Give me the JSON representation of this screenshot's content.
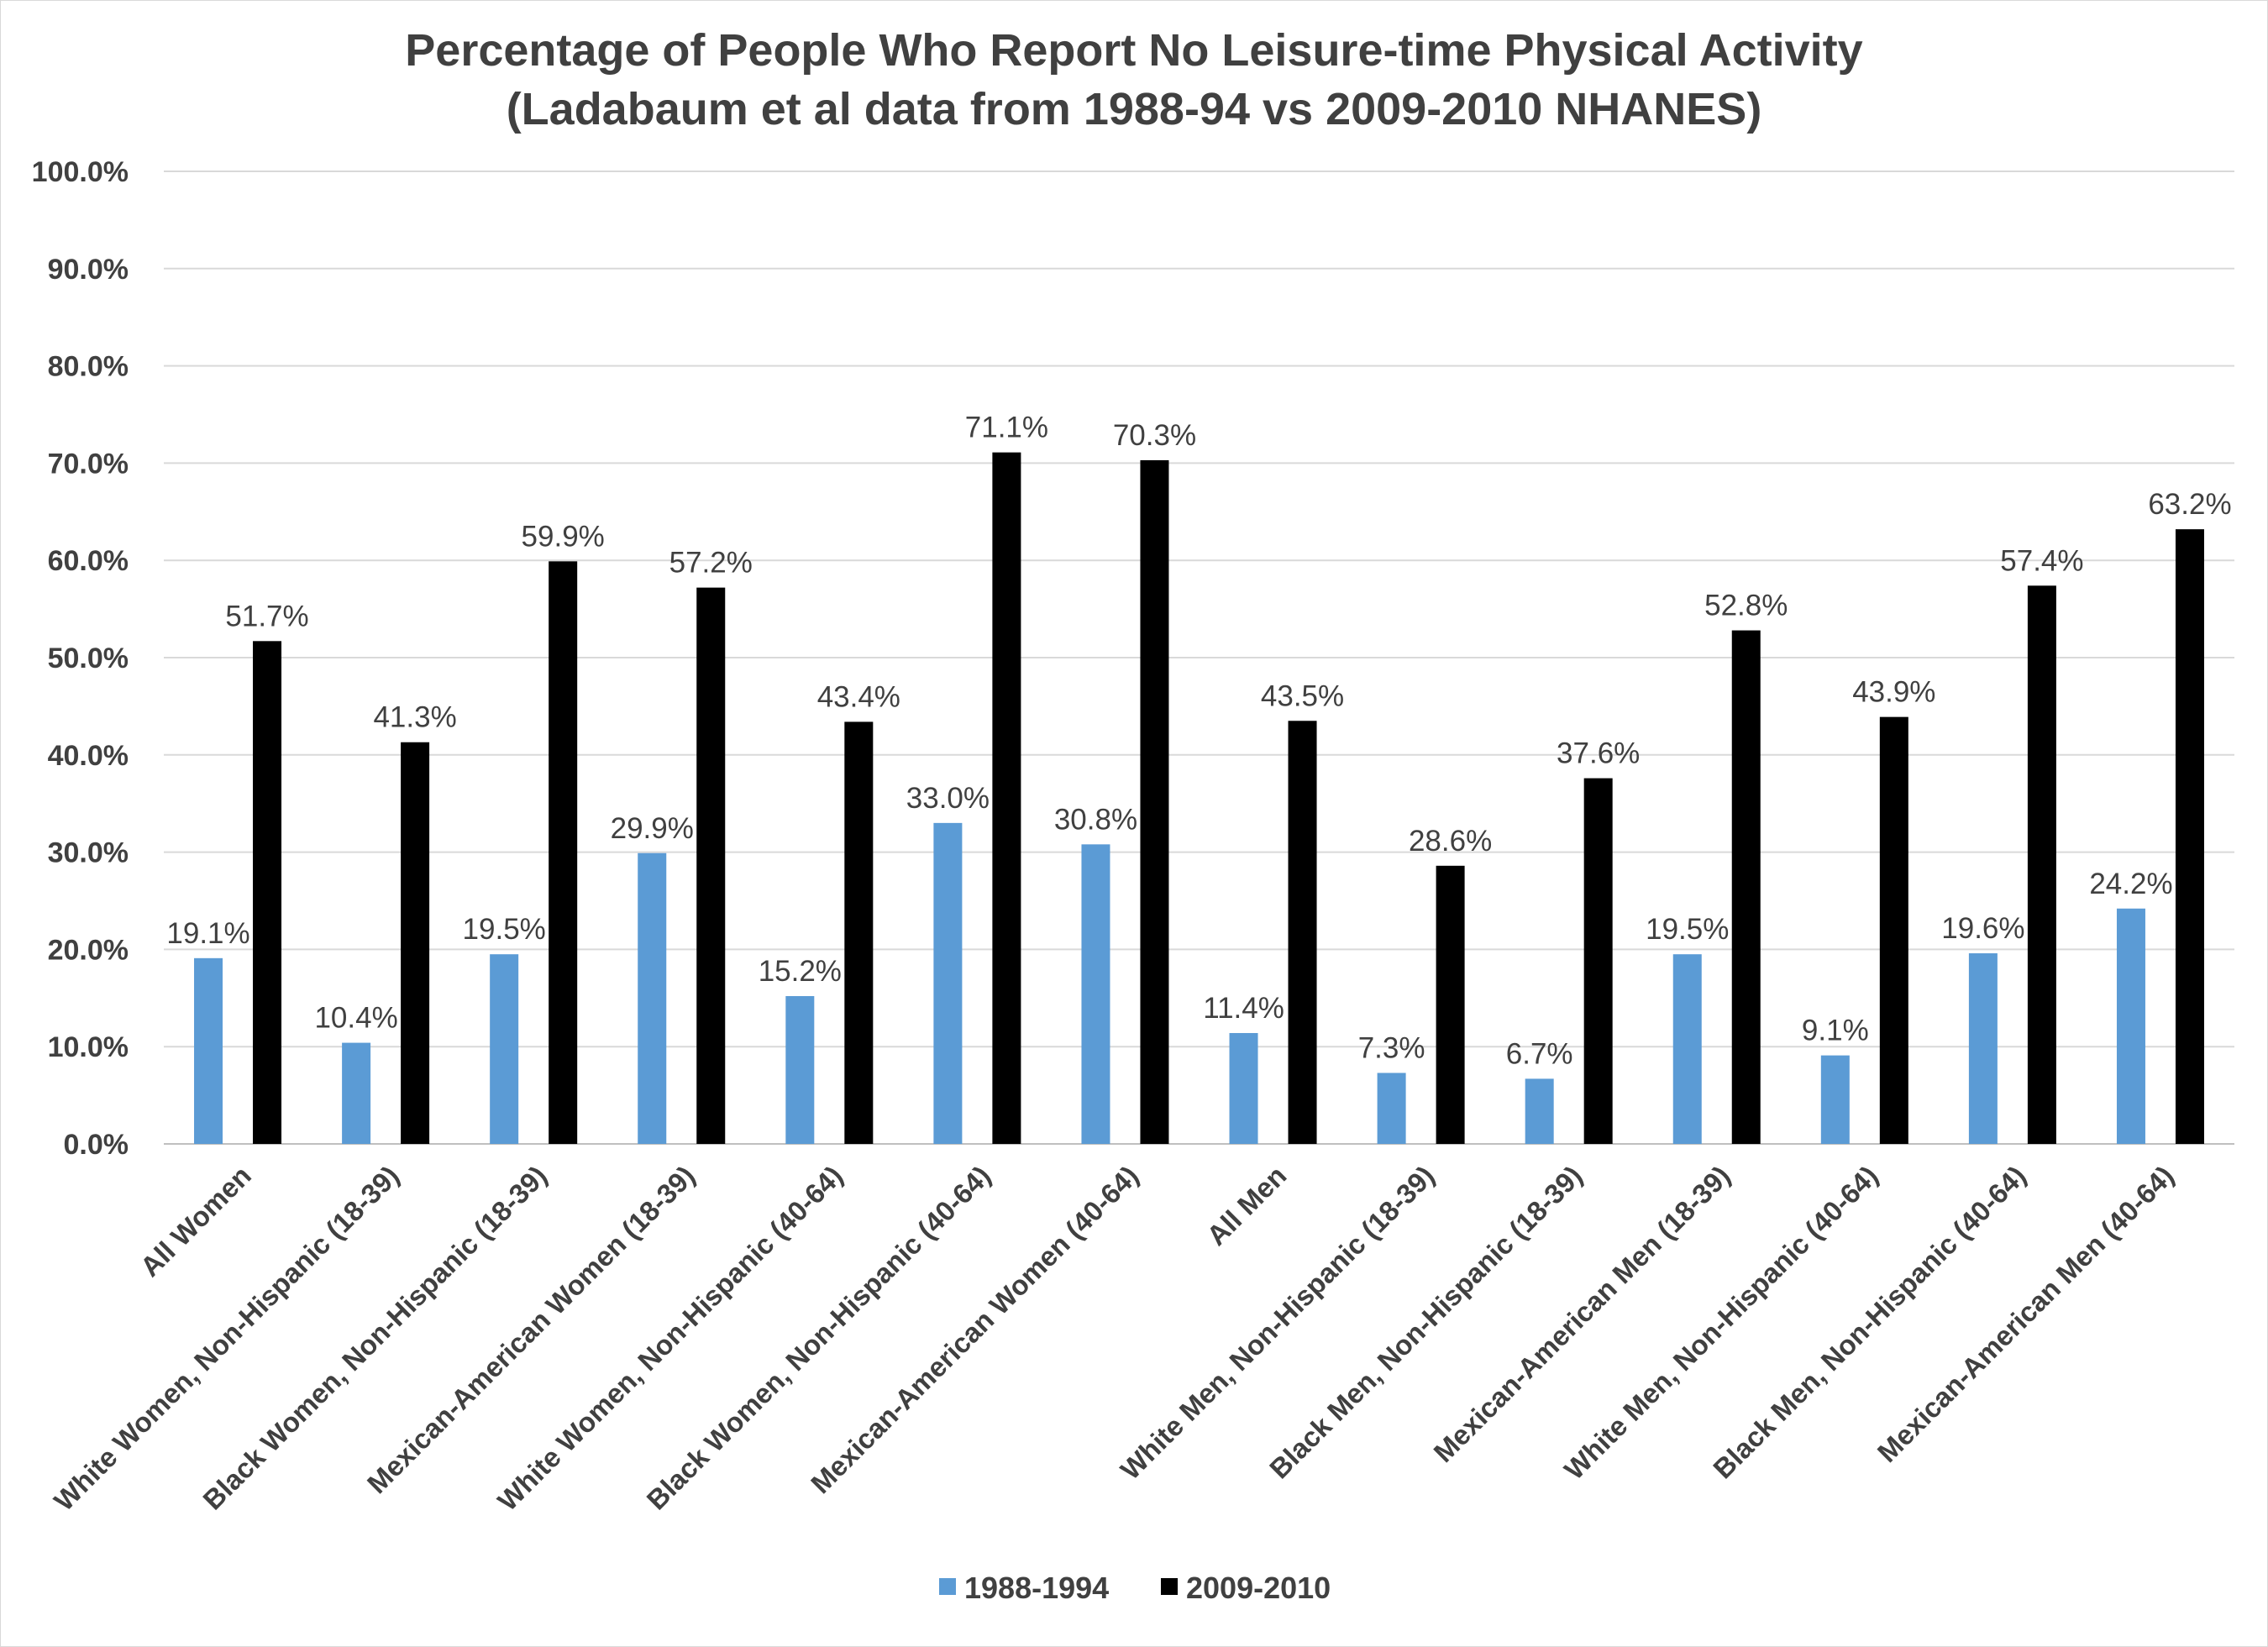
{
  "chart_data": {
    "type": "bar",
    "title": "Percentage of People Who Report No Leisure-time Physical Activity",
    "subtitle": "(Ladabaum et al data from 1988-94 vs 2009-2010 NHANES)",
    "xlabel": "",
    "ylabel": "",
    "ylim": [
      0,
      100
    ],
    "yticks": [
      "0.0%",
      "10.0%",
      "20.0%",
      "30.0%",
      "40.0%",
      "50.0%",
      "60.0%",
      "70.0%",
      "80.0%",
      "90.0%",
      "100.0%"
    ],
    "grid": true,
    "legend_position": "bottom",
    "categories": [
      "All Women",
      "White Women, Non-Hispanic (18-39)",
      "Black Women, Non-Hispanic (18-39)",
      "Mexican-American Women (18-39)",
      "White Women, Non-Hispanic (40-64)",
      "Black Women, Non-Hispanic (40-64)",
      "Mexican-American Women (40-64)",
      "All Men",
      "White Men, Non-Hispanic (18-39)",
      "Black Men, Non-Hispanic (18-39)",
      "Mexican-American Men (18-39)",
      "White Men, Non-Hispanic (40-64)",
      "Black Men, Non-Hispanic (40-64)",
      "Mexican-American Men (40-64)"
    ],
    "series": [
      {
        "name": "1988-1994",
        "color": "#5b9bd5",
        "values": [
          19.1,
          10.4,
          19.5,
          29.9,
          15.2,
          33.0,
          30.8,
          11.4,
          7.3,
          6.7,
          19.5,
          9.1,
          19.6,
          24.2
        ],
        "labels": [
          "19.1%",
          "10.4%",
          "19.5%",
          "29.9%",
          "15.2%",
          "33.0%",
          "30.8%",
          "11.4%",
          "7.3%",
          "6.7%",
          "19.5%",
          "9.1%",
          "19.6%",
          "24.2%"
        ]
      },
      {
        "name": "2009-2010",
        "color": "#000000",
        "values": [
          51.7,
          41.3,
          59.9,
          57.2,
          43.4,
          71.1,
          70.3,
          43.5,
          28.6,
          37.6,
          52.8,
          43.9,
          57.4,
          63.2
        ],
        "labels": [
          "51.7%",
          "41.3%",
          "59.9%",
          "57.2%",
          "43.4%",
          "71.1%",
          "70.3%",
          "43.5%",
          "28.6%",
          "37.6%",
          "52.8%",
          "43.9%",
          "57.4%",
          "63.2%"
        ]
      }
    ]
  }
}
